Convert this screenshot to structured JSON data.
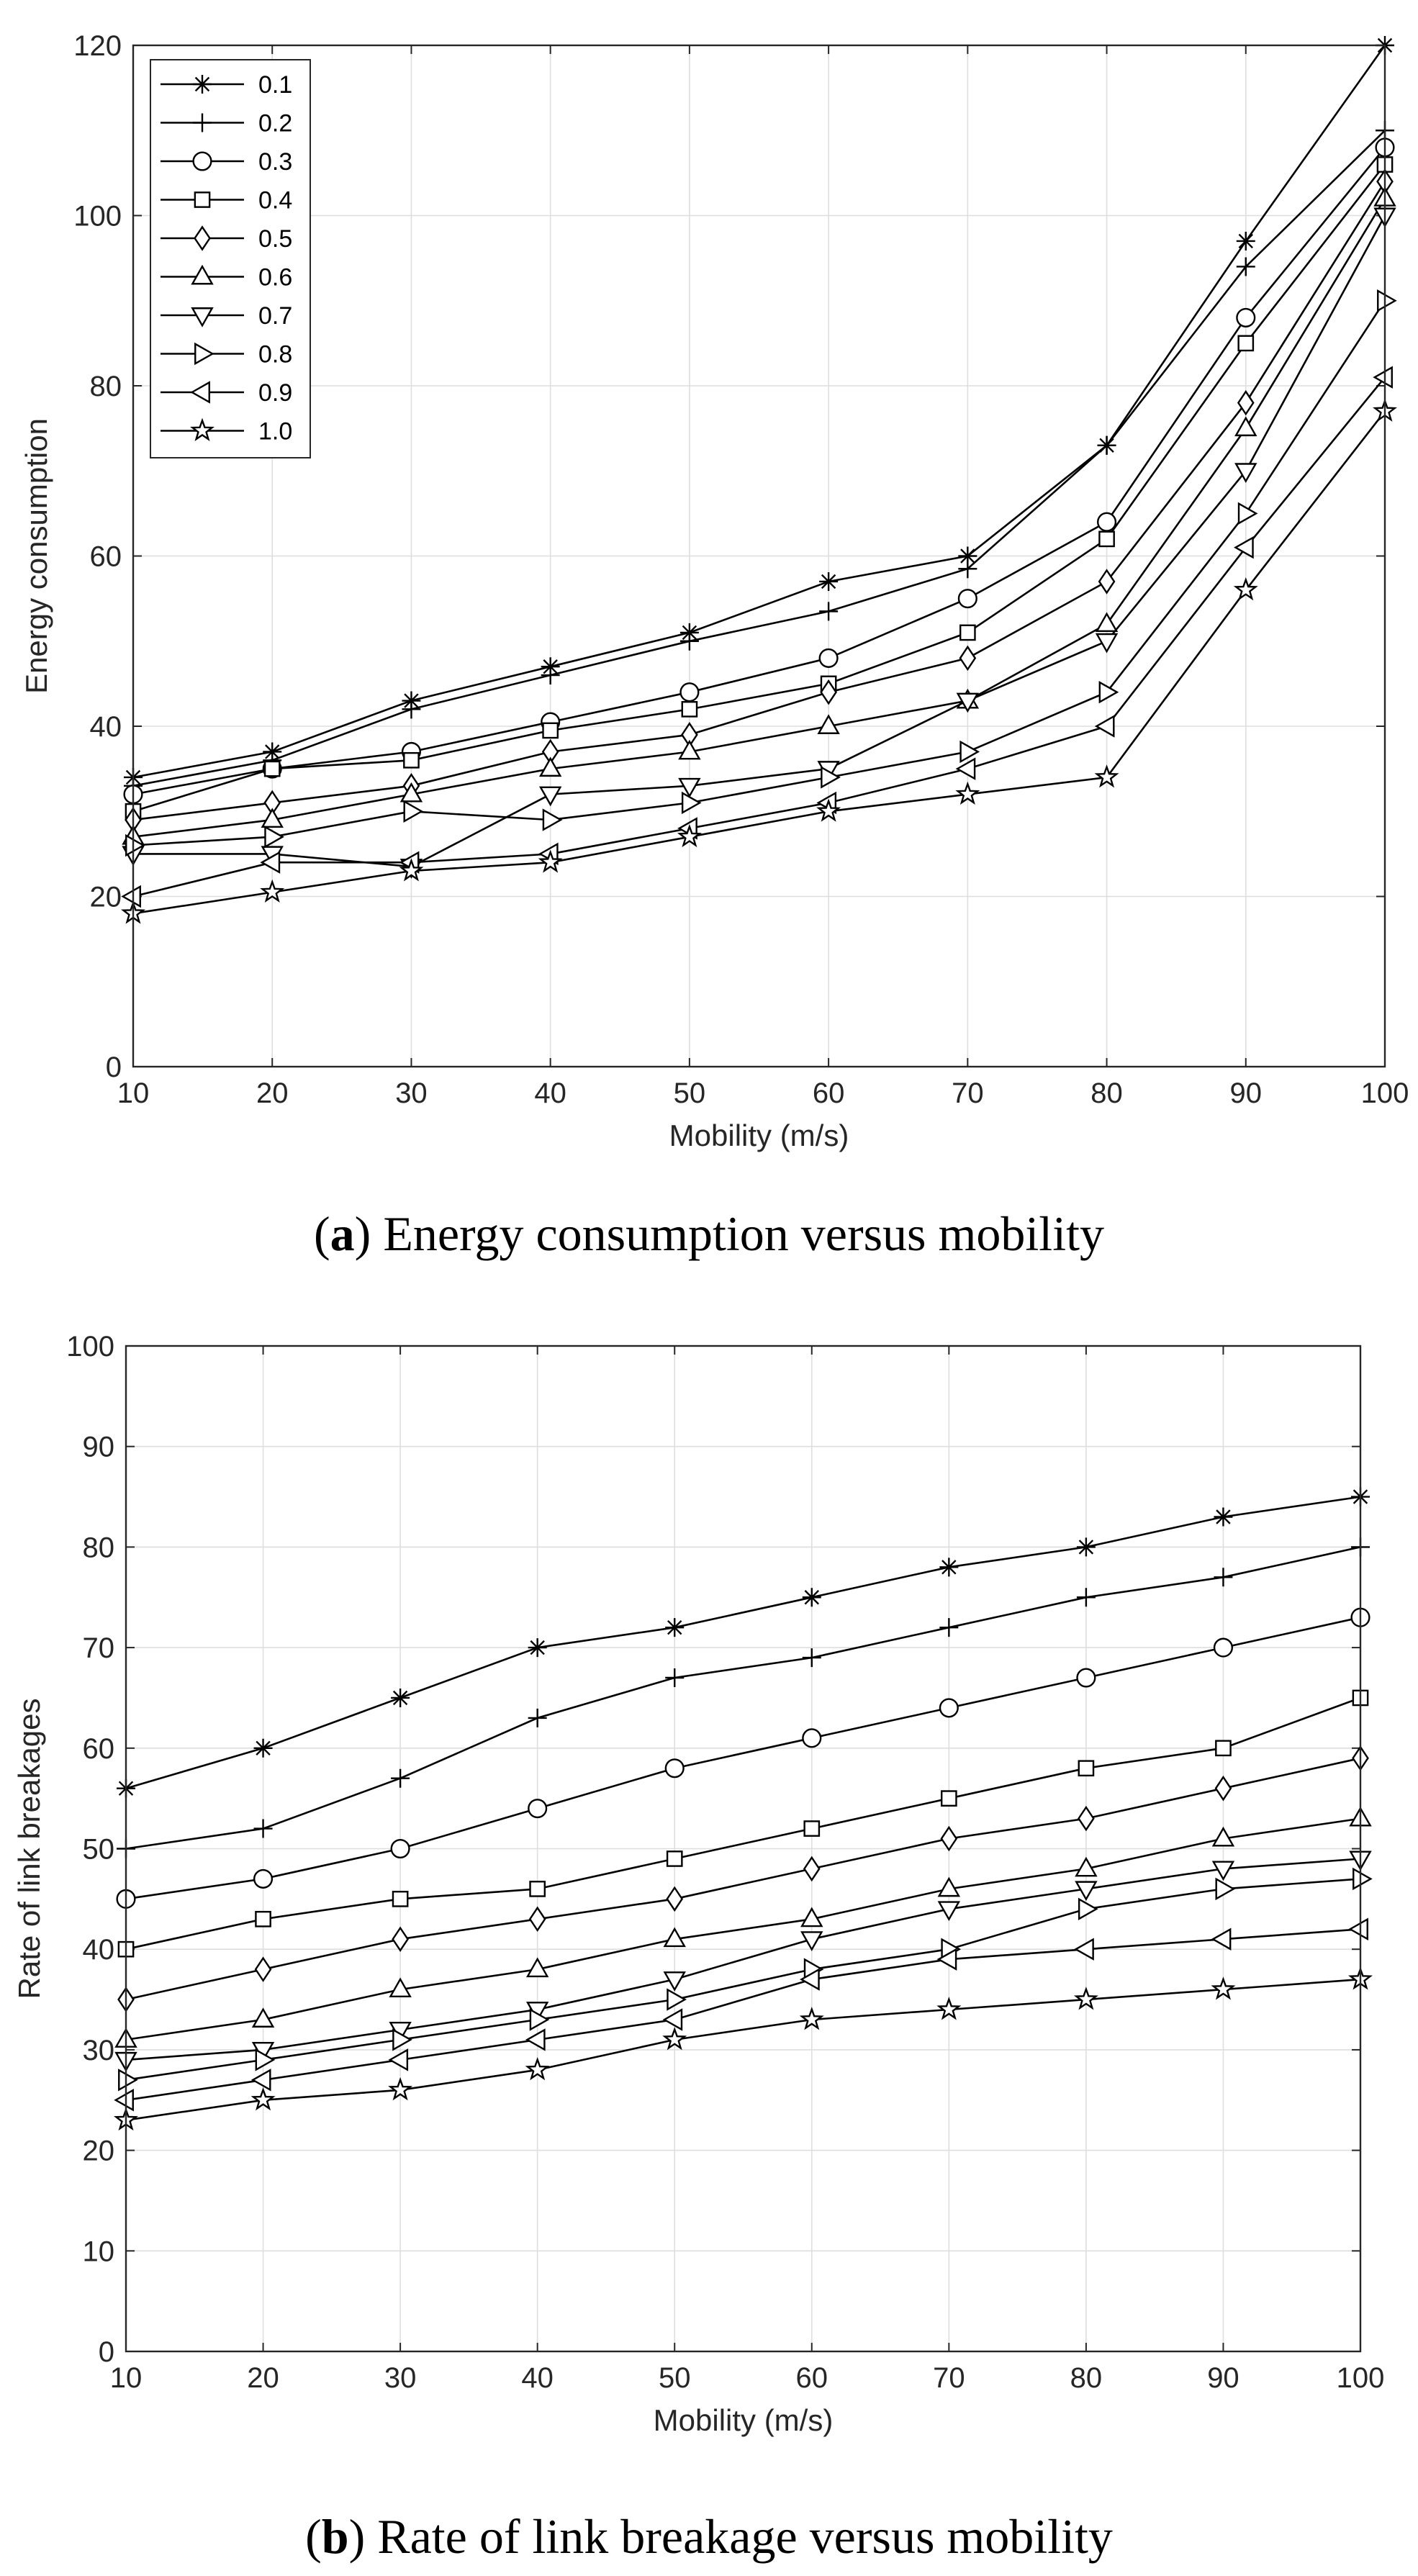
{
  "chart_data": [
    {
      "type": "line",
      "caption_letter": "a",
      "caption_text": "Energy consumption versus mobility",
      "xlabel": "Mobility (m/s)",
      "ylabel": "Energy consumption",
      "x": [
        10,
        20,
        30,
        40,
        50,
        60,
        70,
        80,
        90,
        100
      ],
      "xlim": [
        10,
        100
      ],
      "ylim": [
        0,
        120
      ],
      "xticks": [
        10,
        20,
        30,
        40,
        50,
        60,
        70,
        80,
        90,
        100
      ],
      "yticks": [
        0,
        20,
        40,
        60,
        80,
        100,
        120
      ],
      "grid": true,
      "legend_position": "top-left",
      "series": [
        {
          "name": "0.1",
          "marker": "asterisk",
          "values": [
            34,
            37,
            43,
            47,
            51,
            57,
            60,
            73,
            97,
            120
          ]
        },
        {
          "name": "0.2",
          "marker": "plus",
          "values": [
            33,
            36,
            42,
            46,
            50,
            53.5,
            58.5,
            73,
            94,
            110
          ]
        },
        {
          "name": "0.3",
          "marker": "circle",
          "values": [
            32,
            35,
            37,
            40.5,
            44,
            48,
            55,
            64,
            88,
            108
          ]
        },
        {
          "name": "0.4",
          "marker": "square",
          "values": [
            30,
            35,
            36,
            39.5,
            42,
            45,
            51,
            62,
            85,
            106
          ]
        },
        {
          "name": "0.5",
          "marker": "diamond",
          "values": [
            29,
            31,
            33,
            37,
            39,
            44,
            48,
            57,
            78,
            104
          ]
        },
        {
          "name": "0.6",
          "marker": "triangle-up",
          "values": [
            27,
            29,
            32,
            35,
            37,
            40,
            43,
            52,
            75,
            102
          ]
        },
        {
          "name": "0.7",
          "marker": "triangle-down",
          "values": [
            25,
            25,
            23.5,
            32,
            33,
            35,
            43,
            50,
            70,
            100
          ]
        },
        {
          "name": "0.8",
          "marker": "triangle-right",
          "values": [
            26,
            27,
            30,
            29,
            31,
            34,
            37,
            44,
            65,
            90
          ]
        },
        {
          "name": "0.9",
          "marker": "triangle-left",
          "values": [
            20,
            24,
            24,
            25,
            28,
            31,
            35,
            40,
            61,
            81
          ]
        },
        {
          "name": "1.0",
          "marker": "pentagram",
          "values": [
            18,
            20.5,
            23,
            24,
            27,
            30,
            32,
            34,
            56,
            77
          ]
        }
      ]
    },
    {
      "type": "line",
      "caption_letter": "b",
      "caption_text": "Rate of link breakage versus mobility",
      "xlabel": "Mobility (m/s)",
      "ylabel": "Rate of link breakages",
      "x": [
        10,
        20,
        30,
        40,
        50,
        60,
        70,
        80,
        90,
        100
      ],
      "xlim": [
        10,
        100
      ],
      "ylim": [
        0,
        100
      ],
      "xticks": [
        10,
        20,
        30,
        40,
        50,
        60,
        70,
        80,
        90,
        100
      ],
      "yticks": [
        0,
        10,
        20,
        30,
        40,
        50,
        60,
        70,
        80,
        90,
        100
      ],
      "grid": true,
      "legend_position": "none",
      "series": [
        {
          "name": "0.1",
          "marker": "asterisk",
          "values": [
            56,
            60,
            65,
            70,
            72,
            75,
            78,
            80,
            83,
            85
          ]
        },
        {
          "name": "0.2",
          "marker": "plus",
          "values": [
            50,
            52,
            57,
            63,
            67,
            69,
            72,
            75,
            77,
            80
          ]
        },
        {
          "name": "0.3",
          "marker": "circle",
          "values": [
            45,
            47,
            50,
            54,
            58,
            61,
            64,
            67,
            70,
            73
          ]
        },
        {
          "name": "0.4",
          "marker": "square",
          "values": [
            40,
            43,
            45,
            46,
            49,
            52,
            55,
            58,
            60,
            65
          ]
        },
        {
          "name": "0.5",
          "marker": "diamond",
          "values": [
            35,
            38,
            41,
            43,
            45,
            48,
            51,
            53,
            56,
            59
          ]
        },
        {
          "name": "0.6",
          "marker": "triangle-up",
          "values": [
            31,
            33,
            36,
            38,
            41,
            43,
            46,
            48,
            51,
            53
          ]
        },
        {
          "name": "0.7",
          "marker": "triangle-down",
          "values": [
            29,
            30,
            32,
            34,
            37,
            41,
            44,
            46,
            48,
            49
          ]
        },
        {
          "name": "0.8",
          "marker": "triangle-right",
          "values": [
            27,
            29,
            31,
            33,
            35,
            38,
            40,
            44,
            46,
            47
          ]
        },
        {
          "name": "0.9",
          "marker": "triangle-left",
          "values": [
            25,
            27,
            29,
            31,
            33,
            37,
            39,
            40,
            41,
            42
          ]
        },
        {
          "name": "1.0",
          "marker": "pentagram",
          "values": [
            23,
            25,
            26,
            28,
            31,
            33,
            34,
            35,
            36,
            37
          ]
        }
      ]
    }
  ]
}
